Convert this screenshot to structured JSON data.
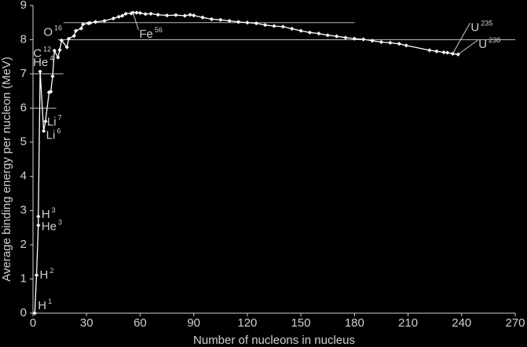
{
  "chart_data": {
    "type": "line",
    "x_label": "Number of nucleons in nucleus",
    "y_label": "Average binding energy per nucleon (MeV)",
    "xlim": [
      0,
      270
    ],
    "xticks": [
      0,
      30,
      60,
      90,
      120,
      150,
      180,
      210,
      240,
      270
    ],
    "ylim": [
      0,
      9
    ],
    "yticks": [
      0,
      1,
      2,
      3,
      4,
      5,
      6,
      7,
      8,
      9
    ],
    "color": "#ffffff",
    "x": [
      1,
      2,
      3,
      3,
      4,
      6,
      7,
      9,
      10,
      11,
      12,
      14,
      15,
      16,
      19,
      20,
      23,
      24,
      27,
      28,
      31,
      32,
      35,
      40,
      45,
      48,
      50,
      52,
      55,
      56,
      58,
      60,
      63,
      66,
      70,
      75,
      80,
      85,
      88,
      90,
      95,
      100,
      105,
      110,
      115,
      120,
      125,
      130,
      135,
      140,
      145,
      150,
      155,
      160,
      165,
      170,
      175,
      180,
      185,
      190,
      195,
      200,
      205,
      209,
      222,
      226,
      230,
      232,
      235,
      238
    ],
    "values": [
      0,
      1.11,
      2.57,
      2.83,
      7.07,
      5.33,
      5.61,
      6.46,
      6.48,
      6.93,
      7.68,
      7.48,
      7.7,
      7.98,
      7.78,
      8.03,
      8.11,
      8.26,
      8.33,
      8.45,
      8.48,
      8.49,
      8.52,
      8.55,
      8.62,
      8.67,
      8.7,
      8.76,
      8.77,
      8.79,
      8.79,
      8.78,
      8.75,
      8.76,
      8.73,
      8.71,
      8.72,
      8.7,
      8.73,
      8.71,
      8.65,
      8.6,
      8.58,
      8.55,
      8.52,
      8.5,
      8.48,
      8.43,
      8.4,
      8.38,
      8.32,
      8.26,
      8.21,
      8.18,
      8.13,
      8.1,
      8.06,
      8.03,
      8.01,
      7.97,
      7.93,
      7.91,
      7.88,
      7.83,
      7.69,
      7.66,
      7.63,
      7.62,
      7.59,
      7.57
    ],
    "reference_lines": [
      {
        "y": 8,
        "x": [
          14,
          270
        ]
      },
      {
        "y": 8.5,
        "x": [
          17,
          180
        ]
      },
      {
        "y": 7,
        "x": [
          0,
          17
        ]
      },
      {
        "y": 6,
        "x": [
          0,
          13
        ]
      }
    ],
    "annotations": [
      {
        "symbol": "H",
        "mass": "1"
      },
      {
        "symbol": "H",
        "mass": "2"
      },
      {
        "symbol": "H",
        "mass": "3"
      },
      {
        "symbol": "He",
        "mass": "3"
      },
      {
        "symbol": "He",
        "mass": "4"
      },
      {
        "symbol": "Li",
        "mass": "6"
      },
      {
        "symbol": "Li",
        "mass": "7"
      },
      {
        "symbol": "C",
        "mass": "12"
      },
      {
        "symbol": "O",
        "mass": "16"
      },
      {
        "symbol": "Fe",
        "mass": "56"
      },
      {
        "symbol": "U",
        "mass": "235"
      },
      {
        "symbol": "U",
        "mass": "238"
      }
    ]
  }
}
